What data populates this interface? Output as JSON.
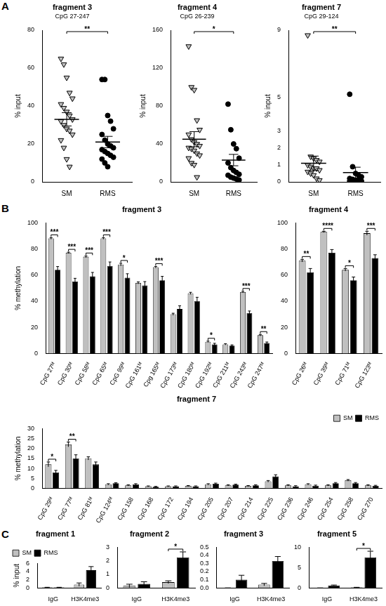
{
  "panel_labels": [
    "A",
    "B",
    "C"
  ],
  "chart_data": [
    {
      "type": "scatter",
      "title": "fragment 3",
      "subtitle": "CpG 27-247",
      "y_label": "% input",
      "grid": false,
      "ylim": [
        0,
        80
      ],
      "yticks": [
        0,
        20,
        40,
        60,
        80
      ],
      "series": [
        {
          "name": "SM",
          "color": "#c0c0c0",
          "marker": "triangle_down",
          "values": [
            65,
            62,
            55,
            47,
            44,
            41,
            39,
            37,
            35,
            33,
            32,
            30,
            28,
            27,
            25,
            22,
            18,
            12,
            8
          ],
          "mean": 33,
          "error": 3.5
        },
        {
          "name": "RMS",
          "color": "#000000",
          "marker": "circle",
          "values": [
            54,
            54,
            35,
            32,
            28,
            25,
            22,
            20,
            19,
            18,
            17,
            16,
            15,
            14,
            13,
            12,
            10,
            8
          ],
          "mean": 21,
          "error": 3
        }
      ],
      "significance": [
        {
          "between": [
            0,
            1
          ],
          "label": "**"
        }
      ]
    },
    {
      "type": "scatter",
      "title": "fragment 4",
      "subtitle": "CpG 26-239",
      "y_label": "% input",
      "grid": false,
      "ylim": [
        0,
        160
      ],
      "yticks": [
        0,
        40,
        80,
        120,
        160
      ],
      "series": [
        {
          "name": "SM",
          "color": "#c0c0c0",
          "marker": "triangle_down",
          "values": [
            143,
            100,
            97,
            65,
            55,
            50,
            45,
            42,
            40,
            38,
            36,
            35,
            33,
            30,
            28,
            25,
            20,
            18,
            5
          ],
          "mean": 45,
          "error": 8
        },
        {
          "name": "RMS",
          "color": "#000000",
          "marker": "circle",
          "values": [
            82,
            55,
            40,
            35,
            25,
            20,
            15,
            12,
            10,
            8,
            7,
            5,
            4,
            3,
            2
          ],
          "mean": 23,
          "error": 6
        }
      ],
      "significance": [
        {
          "between": [
            0,
            1
          ],
          "label": "*"
        }
      ]
    },
    {
      "type": "scatter",
      "title": "fragment 7",
      "subtitle": "CpG 29-124",
      "y_label": "% input",
      "grid": false,
      "ylim": [
        0,
        9
      ],
      "yticks": [
        0,
        1,
        2,
        3,
        5,
        9
      ],
      "series": [
        {
          "name": "SM",
          "color": "#c0c0c0",
          "marker": "triangle_down",
          "values": [
            8.7,
            1.5,
            1.4,
            1.3,
            1.2,
            1.0,
            0.9,
            0.8,
            0.8,
            0.7,
            0.6,
            0.5,
            0.4,
            0.2,
            0.1
          ],
          "mean": 1.1,
          "error": 0.43
        },
        {
          "name": "RMS",
          "color": "#000000",
          "marker": "circle",
          "values": [
            5.2,
            0.9,
            0.5,
            0.4,
            0.3,
            0.2,
            0.15,
            0.1,
            0.1,
            0.05,
            0.05,
            0.02,
            0.02,
            0.01
          ],
          "mean": 0.55,
          "error": 0.32
        }
      ],
      "significance": [
        {
          "between": [
            0,
            1
          ],
          "label": "**"
        }
      ]
    },
    {
      "type": "bar",
      "title": "fragment 3",
      "y_label": "% methylation",
      "grid": false,
      "ylim": [
        0,
        100
      ],
      "yticks": [
        0,
        20,
        40,
        60,
        80,
        100
      ],
      "categories": [
        "CpG 27ᴹ",
        "CpG 30ᴹ",
        "CpG 58ᴹ",
        "CpG 65ᴹ",
        "CpG 99ᴹ",
        "CpG 161ᴹ",
        "Cpg 165ᴹ",
        "CpG 173ᴹ",
        "CpG 180ᴹ",
        "CpG 192ᴹ",
        "CpG 211ᴹ",
        "CpG 243ᴹ",
        "CpG 247ᴹ"
      ],
      "series": [
        {
          "name": "SM",
          "color": "#c0c0c0",
          "values": [
            88,
            77,
            74,
            88,
            68,
            54,
            66,
            30,
            46,
            9,
            7,
            47,
            14
          ],
          "errors": [
            0.6,
            0.5,
            0.7,
            0.6,
            1,
            0.8,
            0.6,
            0.8,
            0.8,
            0.5,
            0.5,
            0.6,
            0.6
          ]
        },
        {
          "name": "RMS",
          "color": "#000000",
          "values": [
            64,
            55,
            59,
            67,
            58,
            52,
            56,
            34,
            40,
            7,
            6,
            31,
            8
          ],
          "errors": [
            2.5,
            2.5,
            3,
            3,
            3,
            3,
            3,
            2.5,
            3,
            0.8,
            0.6,
            1.5,
            0.8
          ]
        }
      ],
      "significance": [
        {
          "index": 0,
          "label": "***"
        },
        {
          "index": 1,
          "label": "***"
        },
        {
          "index": 2,
          "label": "***"
        },
        {
          "index": 3,
          "label": "***"
        },
        {
          "index": 4,
          "label": "*"
        },
        {
          "index": 6,
          "label": "***"
        },
        {
          "index": 9,
          "label": "*"
        },
        {
          "index": 11,
          "label": "***"
        },
        {
          "index": 12,
          "label": "**"
        }
      ]
    },
    {
      "type": "bar",
      "title": "fragment 4",
      "grid": false,
      "ylim": [
        0,
        100
      ],
      "yticks": [
        0,
        20,
        40,
        60,
        80,
        100
      ],
      "categories": [
        "CpG 26ᴹ",
        "CpG 39ᴹ",
        "CpG 71ᴹ",
        "CpG 123ᴹ"
      ],
      "series": [
        {
          "name": "SM",
          "color": "#c0c0c0",
          "values": [
            71,
            93,
            64,
            92
          ],
          "errors": [
            1,
            0.5,
            1,
            1.5
          ]
        },
        {
          "name": "RMS",
          "color": "#000000",
          "values": [
            62,
            77,
            56,
            73
          ],
          "errors": [
            3,
            2.5,
            2.5,
            2.5
          ]
        }
      ],
      "significance": [
        {
          "index": 0,
          "label": "**"
        },
        {
          "index": 1,
          "label": "****"
        },
        {
          "index": 2,
          "label": "*"
        },
        {
          "index": 3,
          "label": "***"
        }
      ]
    },
    {
      "type": "bar",
      "title": "fragment 7",
      "y_label": "% methylation",
      "grid": false,
      "legend": "upper right",
      "ylim": [
        0,
        30
      ],
      "yticks": [
        0,
        5,
        10,
        15,
        20,
        25,
        30
      ],
      "categories": [
        "CpG 29ᴹ",
        "CpG 77ᴹ",
        "CpG 81ᴹ",
        "CpG 124ᴹ",
        "CpG 158",
        "CpG 168",
        "CpG 172",
        "CpG 194",
        "CpG 205",
        "CpG 207",
        "CpG 214",
        "CpG 225",
        "CpG 236",
        "CpG 246",
        "CpG 254",
        "CpG 258",
        "CpG 270"
      ],
      "series": [
        {
          "name": "SM",
          "color": "#c0c0c0",
          "values": [
            12,
            22,
            15,
            2,
            1.5,
            1,
            1,
            1.2,
            2,
            1.5,
            1.2,
            3.5,
            1.5,
            2,
            1.5,
            4,
            1.5
          ],
          "errors": [
            1.2,
            1.2,
            0.8,
            0.3,
            0.3,
            0.2,
            0.2,
            0.2,
            0.3,
            0.3,
            0.2,
            0.4,
            0.3,
            0.3,
            0.3,
            0.4,
            0.3
          ]
        },
        {
          "name": "RMS",
          "color": "#000000",
          "values": [
            8,
            15,
            12,
            2.5,
            2,
            0.8,
            1,
            1,
            2.3,
            1.8,
            1.5,
            6,
            1,
            1.3,
            2.5,
            2.5,
            1.2
          ],
          "errors": [
            1,
            1.8,
            1.2,
            0.3,
            0.3,
            0.2,
            0.2,
            0.2,
            0.3,
            0.3,
            0.3,
            0.8,
            0.3,
            0.3,
            0.4,
            0.4,
            0.3
          ]
        }
      ],
      "significance": [
        {
          "index": 0,
          "label": "*"
        },
        {
          "index": 1,
          "label": "**"
        }
      ]
    },
    {
      "type": "bar",
      "title": "fragment 1",
      "y_label": "% input",
      "grid": false,
      "legend": "upper left",
      "ylim": [
        0,
        6
      ],
      "yticks": [
        0,
        2,
        4,
        6
      ],
      "categories": [
        "IgG",
        "H3K4me3"
      ],
      "series": [
        {
          "name": "SM",
          "color": "#c0c0c0",
          "values": [
            0.1,
            0.8
          ],
          "errors": [
            0.05,
            0.4
          ]
        },
        {
          "name": "RMS",
          "color": "#000000",
          "values": [
            0.1,
            4.3
          ],
          "errors": [
            0.05,
            0.9
          ]
        }
      ],
      "significance": []
    },
    {
      "type": "bar",
      "title": "fragment 2",
      "grid": false,
      "ylim": [
        0,
        3
      ],
      "yticks": [
        0,
        1,
        2,
        3
      ],
      "categories": [
        "IgG",
        "H3K4me3"
      ],
      "series": [
        {
          "name": "SM",
          "color": "#c0c0c0",
          "values": [
            0.15,
            0.42
          ],
          "errors": [
            0.12,
            0.1
          ]
        },
        {
          "name": "RMS",
          "color": "#000000",
          "values": [
            0.3,
            2.25
          ],
          "errors": [
            0.15,
            0.4
          ]
        }
      ],
      "significance": [
        {
          "index": 1,
          "label": "*"
        }
      ]
    },
    {
      "type": "bar",
      "title": "fragment 3",
      "grid": false,
      "ylim": [
        0,
        0.5
      ],
      "yticks": [
        {
          "value": 0,
          "label": "0.0"
        },
        0.1,
        0.2,
        0.3,
        0.4,
        0.5
      ],
      "categories": [
        "IgG",
        "H3K4me3"
      ],
      "series": [
        {
          "name": "SM",
          "color": "#c0c0c0",
          "values": [
            0,
            0.04
          ],
          "errors": [
            0,
            0.015
          ]
        },
        {
          "name": "RMS",
          "color": "#000000",
          "values": [
            0.1,
            0.33
          ],
          "errors": [
            0.055,
            0.055
          ]
        }
      ],
      "significance": []
    },
    {
      "type": "bar",
      "title": "fragment 5",
      "grid": false,
      "ylim": [
        0,
        10
      ],
      "yticks": [
        0,
        5,
        10
      ],
      "categories": [
        "IgG",
        "H3K4me3"
      ],
      "series": [
        {
          "name": "SM",
          "color": "#c0c0c0",
          "values": [
            0,
            0.1
          ],
          "errors": [
            0,
            0.05
          ]
        },
        {
          "name": "RMS",
          "color": "#000000",
          "values": [
            0.6,
            7.5
          ],
          "errors": [
            0.1,
            1.5
          ]
        }
      ],
      "significance": [
        {
          "index": 1,
          "label": "*"
        }
      ]
    }
  ]
}
